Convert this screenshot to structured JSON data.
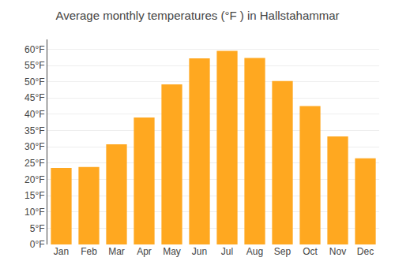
{
  "chart_data": {
    "type": "bar",
    "title": "Average monthly temperatures (°F ) in Hallstahammar",
    "categories": [
      "Jan",
      "Feb",
      "Mar",
      "Apr",
      "May",
      "Jun",
      "Jul",
      "Aug",
      "Sep",
      "Oct",
      "Nov",
      "Dec"
    ],
    "values": [
      23.5,
      23.8,
      30.8,
      39.0,
      49.2,
      57.2,
      59.5,
      57.3,
      50.2,
      42.5,
      33.2,
      26.5
    ],
    "color": "#FFA820",
    "ylim": [
      0,
      63
    ],
    "yticks": [
      {
        "value": 0,
        "label": "0°F"
      },
      {
        "value": 5,
        "label": "5°F"
      },
      {
        "value": 10,
        "label": "10°F"
      },
      {
        "value": 15,
        "label": "15°F"
      },
      {
        "value": 20,
        "label": "20°F"
      },
      {
        "value": 25,
        "label": "25°F"
      },
      {
        "value": 30,
        "label": "30°F"
      },
      {
        "value": 35,
        "label": "35°F"
      },
      {
        "value": 40,
        "label": "40°F"
      },
      {
        "value": 45,
        "label": "45°F"
      },
      {
        "value": 50,
        "label": "50°F"
      },
      {
        "value": 55,
        "label": "55°F"
      },
      {
        "value": 60,
        "label": "60°F"
      }
    ],
    "grid": true
  }
}
